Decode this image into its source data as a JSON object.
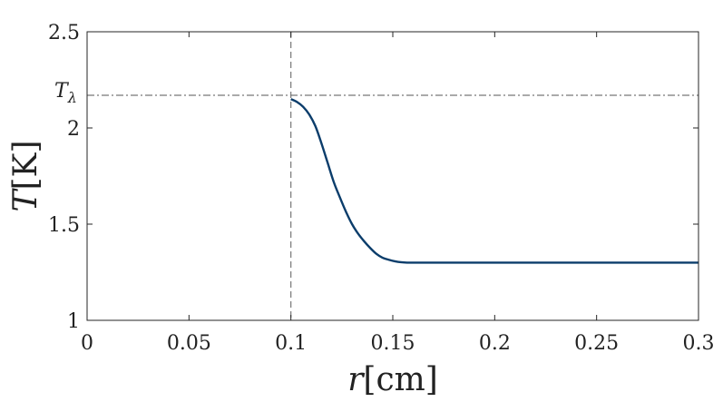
{
  "chart_data": {
    "type": "line",
    "xlabel": {
      "var": "r",
      "unit": "[cm]"
    },
    "ylabel": {
      "var": "T",
      "unit": "[K]"
    },
    "xlim": [
      0,
      0.3
    ],
    "ylim": [
      1,
      2.5
    ],
    "xticks": [
      0,
      0.05,
      0.1,
      0.15,
      0.2,
      0.25,
      0.3
    ],
    "xtick_labels": [
      "0",
      "0.05",
      "0.1",
      "0.15",
      "0.2",
      "0.25",
      "0.3"
    ],
    "yticks": [
      1,
      1.5,
      2,
      2.5
    ],
    "ytick_labels": [
      "1",
      "1.5",
      "2",
      "2.5"
    ],
    "reference_lines": [
      {
        "orientation": "horizontal",
        "value": 2.17,
        "label": "T",
        "subscript": "λ",
        "style": "dashdot",
        "color": "#555555"
      },
      {
        "orientation": "vertical",
        "value": 0.1,
        "style": "dashed",
        "color": "#777777"
      }
    ],
    "series": [
      {
        "color": "#0b3d6b",
        "x": [
          0.1,
          0.103,
          0.106,
          0.109,
          0.112,
          0.115,
          0.118,
          0.121,
          0.124,
          0.127,
          0.13,
          0.133,
          0.136,
          0.139,
          0.142,
          0.145,
          0.148,
          0.151,
          0.154,
          0.157,
          0.16,
          0.17,
          0.2,
          0.25,
          0.3
        ],
        "y": [
          2.15,
          2.135,
          2.11,
          2.07,
          2.01,
          1.92,
          1.82,
          1.72,
          1.64,
          1.565,
          1.5,
          1.45,
          1.41,
          1.375,
          1.345,
          1.325,
          1.315,
          1.307,
          1.302,
          1.3,
          1.3,
          1.3,
          1.3,
          1.3,
          1.3
        ]
      }
    ],
    "grid": false,
    "box": true
  }
}
